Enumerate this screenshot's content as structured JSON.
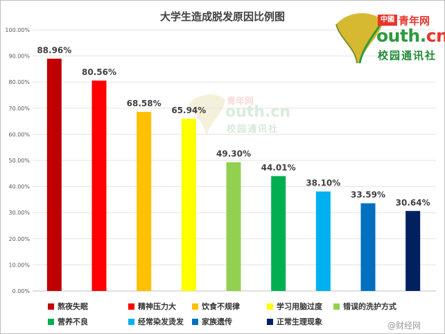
{
  "chart_data": {
    "type": "bar",
    "title": "大学生造成脱发原因比例图",
    "categories": [
      "熬夜失眠",
      "精神压力大",
      "饮食不规律",
      "学习用脑过度",
      "错误的洗护方式",
      "营养不良",
      "经常染发烫发",
      "家族遗传",
      "正常生理现象"
    ],
    "values": [
      88.96,
      80.56,
      68.58,
      65.94,
      49.3,
      44.01,
      38.1,
      33.59,
      30.64
    ],
    "value_labels": [
      "88.96%",
      "80.56%",
      "68.58%",
      "65.94%",
      "49.30%",
      "44.01%",
      "38.10%",
      "33.59%",
      "30.64%"
    ],
    "colors": [
      "#c00000",
      "#ff0000",
      "#ffc000",
      "#ffff00",
      "#92d050",
      "#00b050",
      "#00b0f0",
      "#0070c0",
      "#002060"
    ],
    "ylim": [
      0,
      100
    ],
    "y_ticks": [
      "0.00%",
      "10.00%",
      "20.00%",
      "30.00%",
      "40.00%",
      "50.00%",
      "60.00%",
      "70.00%",
      "80.00%",
      "90.00%",
      "100.00%"
    ],
    "grid": true,
    "legend_position": "bottom"
  },
  "logo": {
    "cn_box": "中國",
    "cn_rest": "青年网",
    "domain_main": "outh.",
    "domain_cn": "cn",
    "tag": "校园通讯社"
  },
  "credit": "@财经网"
}
